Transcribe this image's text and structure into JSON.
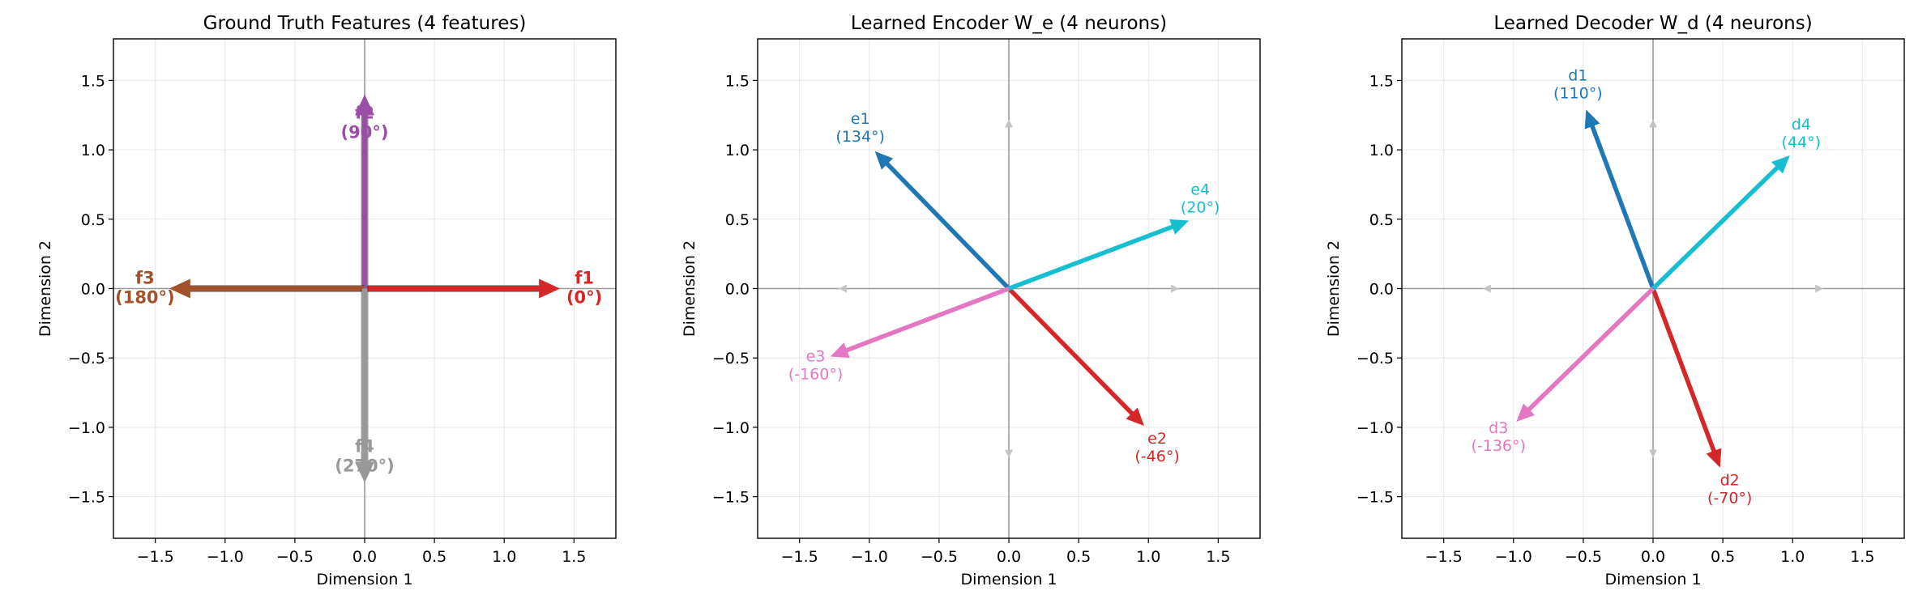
{
  "chart_data": [
    {
      "type": "vector",
      "title": "Ground Truth Features (4 features)",
      "xlabel": "Dimension 1",
      "ylabel": "Dimension 2",
      "xlim": [
        -1.8,
        1.8
      ],
      "ylim": [
        -1.8,
        1.8
      ],
      "xticks": [
        "−1.5",
        "−1.0",
        "−0.5",
        "0.0",
        "0.5",
        "1.0",
        "1.5"
      ],
      "yticks": [
        "1.5",
        "1.0",
        "0.5",
        "0.0",
        "−0.5",
        "−1.0",
        "−1.5"
      ],
      "grid": true,
      "vectors": [
        {
          "name": "f1",
          "angle_label": "(0°)",
          "dx": 1.4,
          "dy": 0.0,
          "color": "#d62728"
        },
        {
          "name": "f2",
          "angle_label": "(90°)",
          "dx": 0.0,
          "dy": 1.4,
          "color": "#9b4ea6"
        },
        {
          "name": "f3",
          "angle_label": "(180°)",
          "dx": -1.4,
          "dy": 0.0,
          "color": "#a0522d"
        },
        {
          "name": "f4",
          "angle_label": "(270°)",
          "dx": 0.0,
          "dy": -1.4,
          "color": "#999999"
        }
      ]
    },
    {
      "type": "vector",
      "title": "Learned Encoder W_e (4 neurons)",
      "xlabel": "Dimension 1",
      "ylabel": "Dimension 2",
      "xlim": [
        -1.8,
        1.8
      ],
      "ylim": [
        -1.8,
        1.8
      ],
      "xticks": [
        "−1.5",
        "−1.0",
        "−0.5",
        "0.0",
        "0.5",
        "1.0",
        "1.5"
      ],
      "yticks": [
        "1.5",
        "1.0",
        "0.5",
        "0.0",
        "−0.5",
        "−1.0",
        "−1.5"
      ],
      "grid": true,
      "vectors": [
        {
          "name": "e1",
          "angle_label": "(134°)",
          "dx": -0.96,
          "dy": 0.99,
          "color": "#1f77b4"
        },
        {
          "name": "e2",
          "angle_label": "(-46°)",
          "dx": 0.97,
          "dy": -0.99,
          "color": "#d62728"
        },
        {
          "name": "e3",
          "angle_label": "(-160°)",
          "dx": -1.28,
          "dy": -0.49,
          "color": "#e377c2"
        },
        {
          "name": "e4",
          "angle_label": "(20°)",
          "dx": 1.29,
          "dy": 0.49,
          "color": "#17becf"
        }
      ]
    },
    {
      "type": "vector",
      "title": "Learned Decoder W_d (4 neurons)",
      "xlabel": "Dimension 1",
      "ylabel": "Dimension 2",
      "xlim": [
        -1.8,
        1.8
      ],
      "ylim": [
        -1.8,
        1.8
      ],
      "xticks": [
        "−1.5",
        "−1.0",
        "−0.5",
        "0.0",
        "0.5",
        "1.0",
        "1.5"
      ],
      "yticks": [
        "1.5",
        "1.0",
        "0.5",
        "0.0",
        "−0.5",
        "−1.0",
        "−1.5"
      ],
      "grid": true,
      "vectors": [
        {
          "name": "d1",
          "angle_label": "(110°)",
          "dx": -0.48,
          "dy": 1.29,
          "color": "#1f77b4"
        },
        {
          "name": "d2",
          "angle_label": "(-70°)",
          "dx": 0.48,
          "dy": -1.29,
          "color": "#d62728"
        },
        {
          "name": "d3",
          "angle_label": "(-136°)",
          "dx": -0.98,
          "dy": -0.96,
          "color": "#e377c2"
        },
        {
          "name": "d4",
          "angle_label": "(44°)",
          "dx": 0.98,
          "dy": 0.96,
          "color": "#17becf"
        }
      ]
    }
  ]
}
